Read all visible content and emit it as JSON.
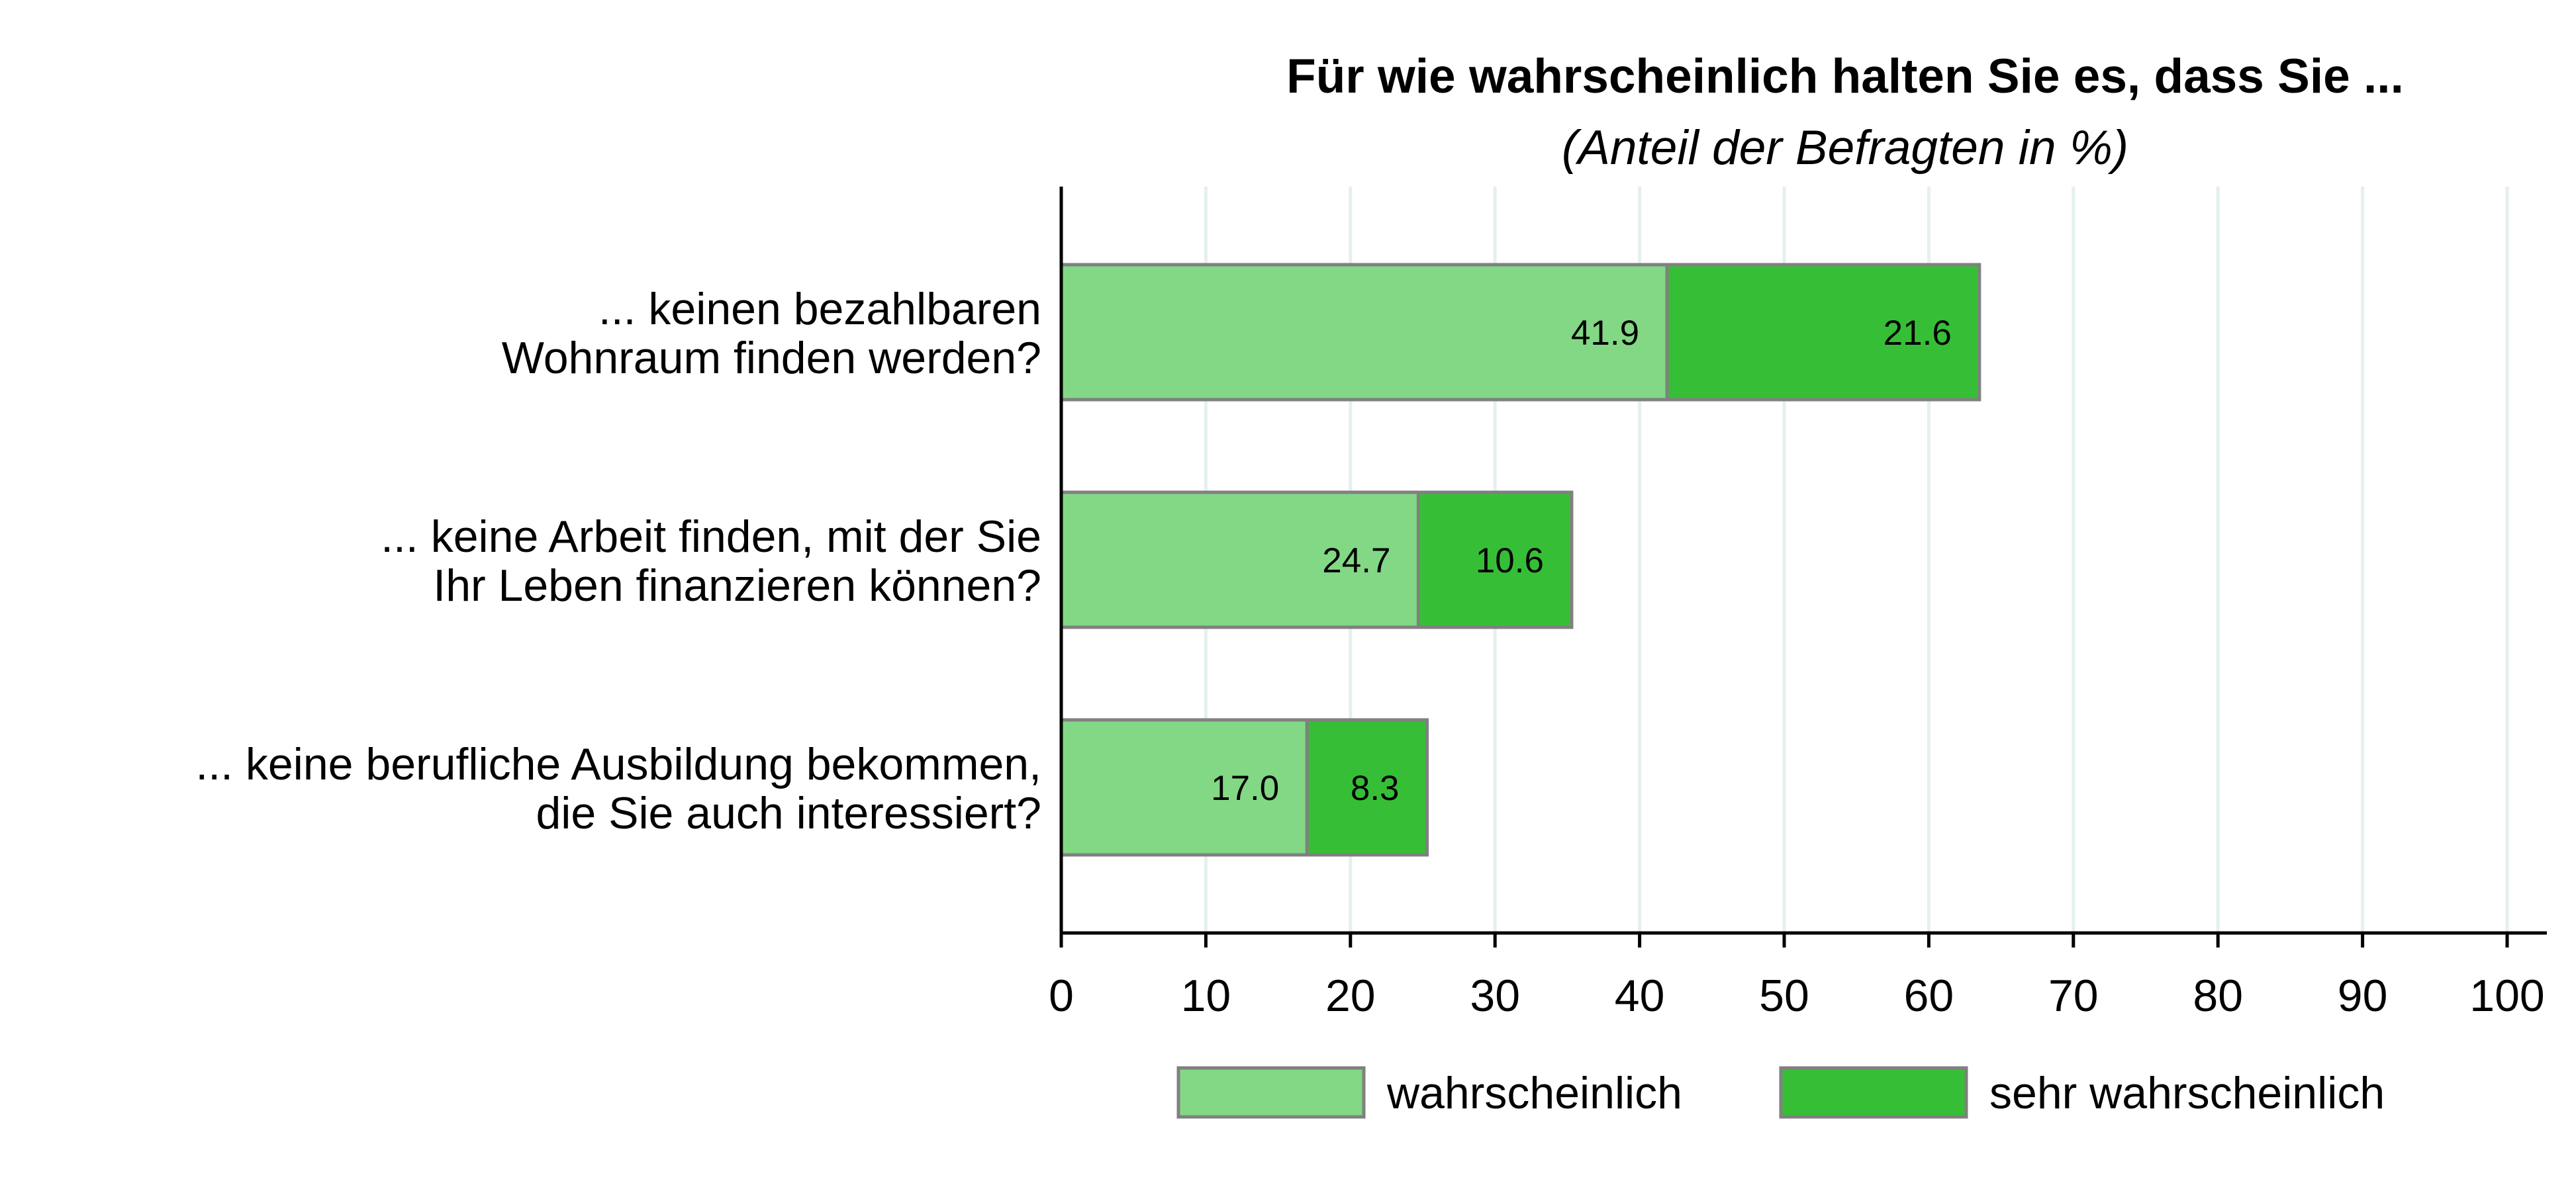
{
  "chart_data": {
    "type": "bar",
    "orientation": "horizontal",
    "stacked": true,
    "title": "Für wie wahrscheinlich halten Sie es, dass Sie ...",
    "subtitle": "(Anteil der Befragten in %)",
    "categories": [
      [
        "... keinen bezahlbaren",
        "Wohnraum finden werden?"
      ],
      [
        "... keine Arbeit finden, mit der Sie",
        "Ihr Leben finanzieren können?"
      ],
      [
        "... keine berufliche Ausbildung bekommen,",
        "die Sie auch interessiert?"
      ]
    ],
    "series": [
      {
        "name": "wahrscheinlich",
        "color": "#82d884",
        "values": [
          41.9,
          24.7,
          17.0
        ],
        "labels": [
          "41.9",
          "24.7",
          "17.0"
        ]
      },
      {
        "name": "sehr wahrscheinlich",
        "color": "#36bf36",
        "values": [
          21.6,
          10.6,
          8.3
        ],
        "labels": [
          "21.6",
          "10.6",
          "8.3"
        ]
      }
    ],
    "xlim": [
      0,
      100
    ],
    "xticks": [
      0,
      10,
      20,
      30,
      40,
      50,
      60,
      70,
      80,
      90,
      100
    ],
    "grid": true,
    "legend_position": "bottom"
  }
}
